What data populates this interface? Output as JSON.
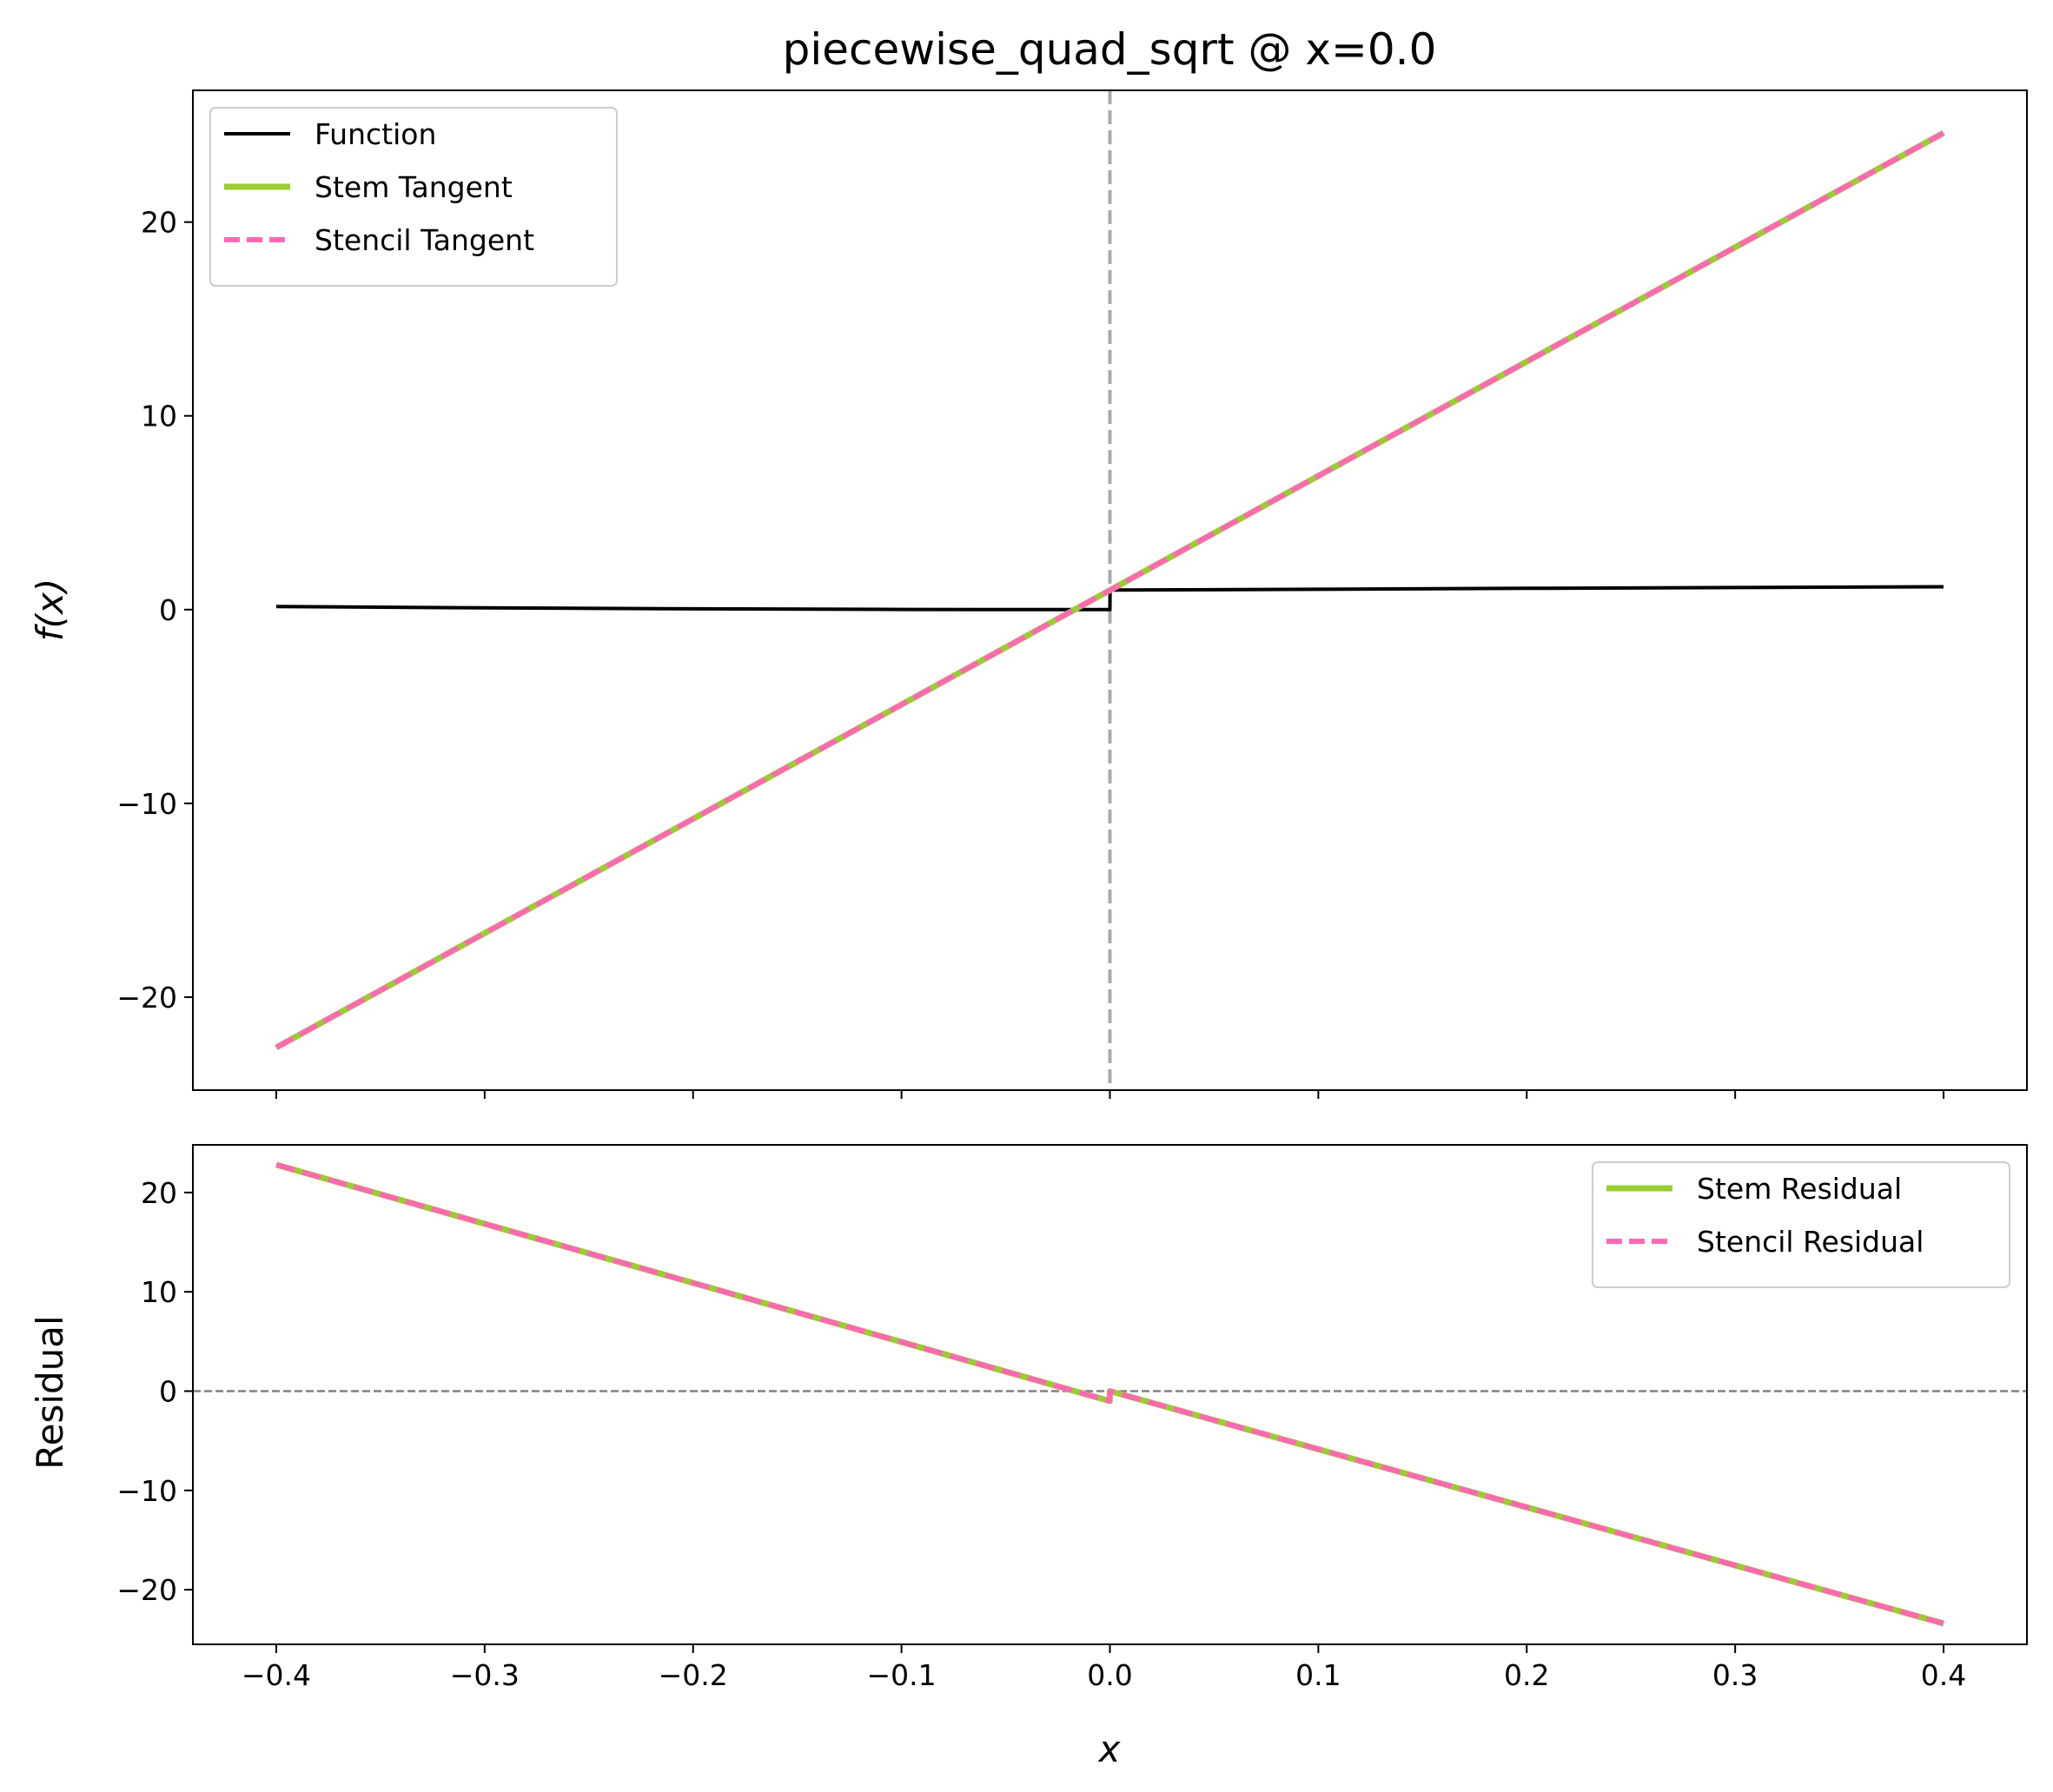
{
  "title": "piecewise_quad_sqrt @ x=0.0",
  "colors": {
    "function": "#000000",
    "stem": "#9acd32",
    "stencil": "#ff69b4",
    "marker": "#aaaaaa",
    "zero_line": "#808080"
  },
  "chart_data": [
    {
      "type": "line",
      "panel": "top",
      "title": "piecewise_quad_sqrt @ x=0.0",
      "xlabel": "",
      "ylabel": "f(x)",
      "xlim": [
        -0.44,
        0.44
      ],
      "ylim": [
        -24.8,
        26.8
      ],
      "yticks": [
        -20,
        -10,
        0,
        10,
        20
      ],
      "ytick_labels": [
        "−20",
        "−10",
        "0",
        "10",
        "20"
      ],
      "x_marker": 0.0,
      "legend": {
        "position": "upper left",
        "entries": [
          "Function",
          "Stem Tangent",
          "Stencil Tangent"
        ]
      },
      "series": [
        {
          "name": "Function",
          "style": "solid",
          "x": [
            -0.4,
            -0.3,
            -0.2,
            -0.1,
            0.0,
            0.0001,
            0.1,
            0.2,
            0.3,
            0.4
          ],
          "y": [
            0.16,
            0.09,
            0.04,
            0.01,
            0.0,
            1.01,
            1.05,
            1.1,
            1.14,
            1.18
          ]
        },
        {
          "name": "Stem Tangent",
          "style": "solid",
          "x": [
            -0.4,
            0.4
          ],
          "y": [
            -22.6,
            24.6
          ]
        },
        {
          "name": "Stencil Tangent",
          "style": "dashed",
          "x": [
            -0.4,
            0.4
          ],
          "y": [
            -22.6,
            24.6
          ]
        }
      ]
    },
    {
      "type": "line",
      "panel": "bottom",
      "xlabel": "x",
      "ylabel": "Residual",
      "xlim": [
        -0.44,
        0.44
      ],
      "ylim": [
        -25.5,
        24.8
      ],
      "xticks": [
        -0.4,
        -0.3,
        -0.2,
        -0.1,
        0.0,
        0.1,
        0.2,
        0.3,
        0.4
      ],
      "xtick_labels": [
        "−0.4",
        "−0.3",
        "−0.2",
        "−0.1",
        "0.0",
        "0.1",
        "0.2",
        "0.3",
        "0.4"
      ],
      "yticks": [
        -20,
        -10,
        0,
        10,
        20
      ],
      "ytick_labels": [
        "−20",
        "−10",
        "0",
        "10",
        "20"
      ],
      "y_reference": 0,
      "legend": {
        "position": "upper right",
        "entries": [
          "Stem Residual",
          "Stencil Residual"
        ]
      },
      "series": [
        {
          "name": "Stem Residual",
          "style": "solid",
          "x": [
            -0.4,
            -0.0001,
            0.0,
            0.4
          ],
          "y": [
            22.8,
            -1.0,
            0.0,
            -23.4
          ]
        },
        {
          "name": "Stencil Residual",
          "style": "dashed",
          "x": [
            -0.4,
            -0.0001,
            0.0,
            0.4
          ],
          "y": [
            22.8,
            -1.0,
            0.0,
            -23.4
          ]
        }
      ]
    }
  ]
}
